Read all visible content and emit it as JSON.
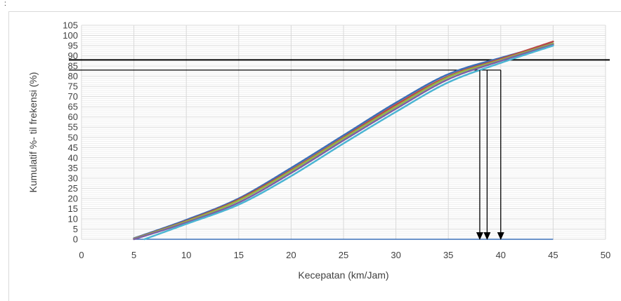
{
  "corner_mark": ":",
  "chart_data": {
    "type": "line",
    "title": "",
    "xlabel": "Kecepatan (km/Jam)",
    "ylabel": "Kumulatif %- til frekensi (%)",
    "xlim": [
      0,
      50
    ],
    "ylim": [
      0,
      105
    ],
    "x_ticks": [
      "0",
      "5",
      "10",
      "15",
      "20",
      "25",
      "30",
      "35",
      "40",
      "45",
      "50"
    ],
    "y_ticks": [
      "0",
      "5",
      "10",
      "15",
      "20",
      "25",
      "30",
      "35",
      "40",
      "45",
      "50",
      "55",
      "60",
      "65",
      "70",
      "75",
      "80",
      "85",
      "90",
      "95",
      "100",
      "105"
    ],
    "grid": true,
    "legend": "none",
    "series": [
      {
        "color": "#3a6fb7",
        "points": [
          [
            5,
            0.5
          ],
          [
            10,
            9.5
          ],
          [
            15,
            20
          ],
          [
            20,
            35
          ],
          [
            25,
            51
          ],
          [
            30,
            67
          ],
          [
            35,
            81
          ],
          [
            40,
            89
          ],
          [
            45,
            96
          ]
        ]
      },
      {
        "color": "#b94a48",
        "points": [
          [
            5,
            0.3
          ],
          [
            10,
            9
          ],
          [
            15,
            19.5
          ],
          [
            20,
            34
          ],
          [
            25,
            50
          ],
          [
            30,
            66
          ],
          [
            35,
            80
          ],
          [
            40,
            88.5
          ],
          [
            45,
            97
          ]
        ]
      },
      {
        "color": "#93b945",
        "points": [
          [
            5,
            0.2
          ],
          [
            10,
            8.7
          ],
          [
            15,
            19
          ],
          [
            20,
            33.5
          ],
          [
            25,
            49.5
          ],
          [
            30,
            65
          ],
          [
            35,
            79.5
          ],
          [
            40,
            88
          ],
          [
            45,
            96
          ]
        ]
      },
      {
        "color": "#7d5fa3",
        "points": [
          [
            5,
            0
          ],
          [
            10,
            8.2
          ],
          [
            15,
            18
          ],
          [
            20,
            32.5
          ],
          [
            25,
            48.5
          ],
          [
            30,
            64
          ],
          [
            35,
            78.5
          ],
          [
            40,
            87.5
          ],
          [
            45,
            95.5
          ]
        ]
      },
      {
        "color": "#4bb5d3",
        "points": [
          [
            6,
            0
          ],
          [
            10,
            7.5
          ],
          [
            15,
            17
          ],
          [
            20,
            31
          ],
          [
            25,
            47
          ],
          [
            30,
            62.5
          ],
          [
            35,
            77
          ],
          [
            40,
            86.5
          ],
          [
            45,
            95
          ]
        ]
      }
    ],
    "reference_lines": {
      "horizontal": [
        {
          "y": 88,
          "color": "#000000"
        },
        {
          "y": 83,
          "color": "#000000"
        }
      ],
      "arrows": [
        {
          "x": 38,
          "from_y": 83,
          "to_y": 0
        },
        {
          "x": 38.7,
          "from_y": 83,
          "to_y": 0
        },
        {
          "x": 40,
          "from_y": 83,
          "to_y": 0
        }
      ]
    },
    "colors": {
      "grid": "#d9d9d9",
      "axis_text": "#404040",
      "reference": "#000000",
      "baseline": "#3a6fb7"
    }
  }
}
